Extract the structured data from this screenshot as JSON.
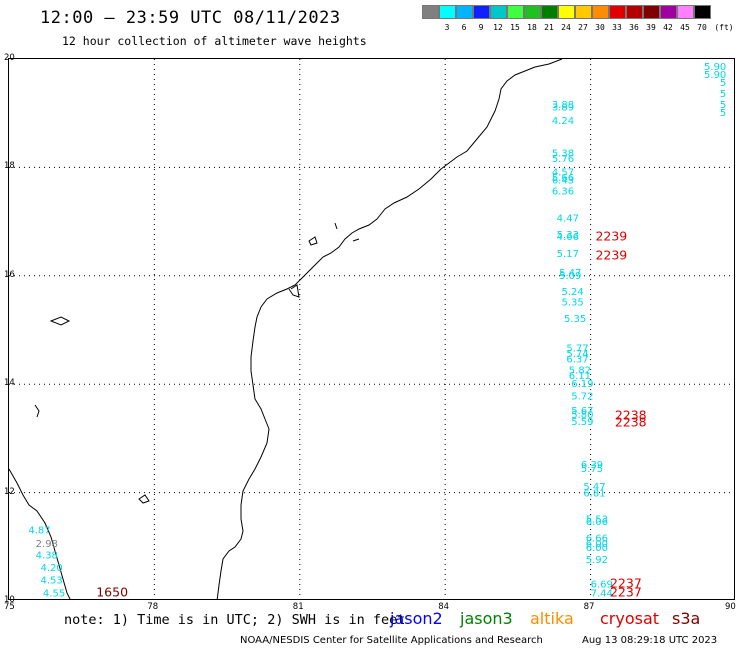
{
  "header": {
    "title": "12:00 – 23:59 UTC 08/11/2023",
    "subtitle": "12 hour collection of altimeter wave heights"
  },
  "colorbar": {
    "unit": "(ft)",
    "cells": [
      {
        "color": "#808080",
        "label": ""
      },
      {
        "color": "#00ffff",
        "label": "3"
      },
      {
        "color": "#00b4ff",
        "label": "6"
      },
      {
        "color": "#1020ff",
        "label": "9"
      },
      {
        "color": "#00c8c8",
        "label": "12"
      },
      {
        "color": "#40ff40",
        "label": "15"
      },
      {
        "color": "#20c020",
        "label": "18"
      },
      {
        "color": "#008000",
        "label": "21"
      },
      {
        "color": "#ffff00",
        "label": "24"
      },
      {
        "color": "#ffc800",
        "label": "27"
      },
      {
        "color": "#ff8c00",
        "label": "30"
      },
      {
        "color": "#e00000",
        "label": "33"
      },
      {
        "color": "#b40000",
        "label": "36"
      },
      {
        "color": "#800000",
        "label": "39"
      },
      {
        "color": "#a000a0",
        "label": "42"
      },
      {
        "color": "#ff80ff",
        "label": "45"
      },
      {
        "color": "#000000",
        "label": "70"
      }
    ]
  },
  "map": {
    "lon_range": [
      75,
      90
    ],
    "lat_range": [
      10,
      20
    ],
    "x_ticks": [
      "75",
      "78",
      "81",
      "84",
      "87",
      "90"
    ],
    "y_ticks": [
      "20",
      "18",
      "16",
      "14",
      "12",
      "10"
    ],
    "grid": "dotted"
  },
  "observations": [
    {
      "lon": 86.2,
      "lat": 19.1,
      "label": "3.88",
      "color": "#00d8e8"
    },
    {
      "lon": 86.2,
      "lat": 19.05,
      "label": "3.89",
      "color": "#00d8e8"
    },
    {
      "lon": 86.2,
      "lat": 18.8,
      "label": "4.24",
      "color": "#00d8e8"
    },
    {
      "lon": 86.2,
      "lat": 18.2,
      "label": "5.38",
      "color": "#00d8e8"
    },
    {
      "lon": 86.2,
      "lat": 18.1,
      "label": "5.76",
      "color": "#00d8e8"
    },
    {
      "lon": 86.2,
      "lat": 17.85,
      "label": "4.57",
      "color": "#00d8e8"
    },
    {
      "lon": 86.2,
      "lat": 17.75,
      "label": "5.66",
      "color": "#00d8e8"
    },
    {
      "lon": 86.2,
      "lat": 17.7,
      "label": "6.43",
      "color": "#00d8e8"
    },
    {
      "lon": 86.2,
      "lat": 17.5,
      "label": "6.36",
      "color": "#00d8e8"
    },
    {
      "lon": 86.3,
      "lat": 17.0,
      "label": "4.47",
      "color": "#00d8e8"
    },
    {
      "lon": 86.3,
      "lat": 16.7,
      "label": "5.33",
      "color": "#00d8e8"
    },
    {
      "lon": 86.3,
      "lat": 16.66,
      "label": "4.66",
      "color": "#00d8e8"
    },
    {
      "lon": 86.3,
      "lat": 16.35,
      "label": "5.17",
      "color": "#00d8e8"
    },
    {
      "lon": 86.35,
      "lat": 16.0,
      "label": "5.47",
      "color": "#00d8e8"
    },
    {
      "lon": 86.35,
      "lat": 15.94,
      "label": "5.09",
      "color": "#00d8e8"
    },
    {
      "lon": 86.4,
      "lat": 15.65,
      "label": "5.24",
      "color": "#00d8e8"
    },
    {
      "lon": 86.4,
      "lat": 15.45,
      "label": "5.35",
      "color": "#00d8e8"
    },
    {
      "lon": 86.45,
      "lat": 15.15,
      "label": "5.35",
      "color": "#00d8e8"
    },
    {
      "lon": 86.5,
      "lat": 14.6,
      "label": "5.77",
      "color": "#00d8e8"
    },
    {
      "lon": 86.5,
      "lat": 14.5,
      "label": "5.74",
      "color": "#00d8e8"
    },
    {
      "lon": 86.5,
      "lat": 14.4,
      "label": "6.37",
      "color": "#00d8e8"
    },
    {
      "lon": 86.55,
      "lat": 14.2,
      "label": "5.82",
      "color": "#00d8e8"
    },
    {
      "lon": 86.55,
      "lat": 14.1,
      "label": "6.11",
      "color": "#00d8e8"
    },
    {
      "lon": 86.6,
      "lat": 13.95,
      "label": "6.19",
      "color": "#00d8e8"
    },
    {
      "lon": 86.6,
      "lat": 13.72,
      "label": "5.72",
      "color": "#00d8e8"
    },
    {
      "lon": 86.6,
      "lat": 13.45,
      "label": "5.67",
      "color": "#00d8e8"
    },
    {
      "lon": 86.6,
      "lat": 13.38,
      "label": "5.80",
      "color": "#00d8e8"
    },
    {
      "lon": 86.6,
      "lat": 13.25,
      "label": "5.59",
      "color": "#00d8e8"
    },
    {
      "lon": 86.8,
      "lat": 12.45,
      "label": "6.39",
      "color": "#00d8e8"
    },
    {
      "lon": 86.8,
      "lat": 12.38,
      "label": "5.75",
      "color": "#00d8e8"
    },
    {
      "lon": 86.85,
      "lat": 12.05,
      "label": "5.47",
      "color": "#00d8e8"
    },
    {
      "lon": 86.85,
      "lat": 11.93,
      "label": "6.81",
      "color": "#00d8e8"
    },
    {
      "lon": 86.9,
      "lat": 11.45,
      "label": "5.53",
      "color": "#00d8e8"
    },
    {
      "lon": 86.9,
      "lat": 11.4,
      "label": "6.06",
      "color": "#00d8e8"
    },
    {
      "lon": 86.9,
      "lat": 11.1,
      "label": "6.66",
      "color": "#00d8e8"
    },
    {
      "lon": 86.9,
      "lat": 11.0,
      "label": "6.00",
      "color": "#00d8e8"
    },
    {
      "lon": 86.9,
      "lat": 10.92,
      "label": "6.00",
      "color": "#00d8e8"
    },
    {
      "lon": 86.9,
      "lat": 10.7,
      "label": "5.92",
      "color": "#00d8e8"
    },
    {
      "lon": 87.0,
      "lat": 10.25,
      "label": "6.69",
      "color": "#00d8e8"
    },
    {
      "lon": 87.0,
      "lat": 10.08,
      "label": "7.44",
      "color": "#00d8e8"
    },
    {
      "lon": 75.4,
      "lat": 11.25,
      "label": "4.87",
      "color": "#00d8e8"
    },
    {
      "lon": 75.55,
      "lat": 11.0,
      "label": "2.98",
      "color": "#808080"
    },
    {
      "lon": 75.55,
      "lat": 10.78,
      "label": "4.38",
      "color": "#00d8e8"
    },
    {
      "lon": 75.65,
      "lat": 10.55,
      "label": "4.20",
      "color": "#00d8e8"
    },
    {
      "lon": 75.65,
      "lat": 10.32,
      "label": "4.53",
      "color": "#00d8e8"
    },
    {
      "lon": 75.7,
      "lat": 10.08,
      "label": "4.55",
      "color": "#00d8e8"
    },
    {
      "lon": 89.8,
      "lat": 19.8,
      "label": "5.90",
      "color": "#00d8e8"
    },
    {
      "lon": 89.8,
      "lat": 19.65,
      "label": "5.90",
      "color": "#00d8e8"
    },
    {
      "lon": 89.8,
      "lat": 19.5,
      "label": "5",
      "color": "#00d8e8"
    },
    {
      "lon": 89.8,
      "lat": 19.3,
      "label": "5",
      "color": "#00d8e8"
    },
    {
      "lon": 89.8,
      "lat": 19.1,
      "label": "5",
      "color": "#00d8e8"
    },
    {
      "lon": 89.8,
      "lat": 18.95,
      "label": "5",
      "color": "#00d8e8"
    }
  ],
  "passes": [
    {
      "lon": 87.1,
      "lat": 16.65,
      "label": "2239",
      "color": "#e00000"
    },
    {
      "lon": 87.1,
      "lat": 16.3,
      "label": "2239",
      "color": "#e00000"
    },
    {
      "lon": 87.5,
      "lat": 13.35,
      "label": "2238",
      "color": "#e00000"
    },
    {
      "lon": 87.5,
      "lat": 13.22,
      "label": "2238",
      "color": "#e00000"
    },
    {
      "lon": 87.4,
      "lat": 10.25,
      "label": "2237",
      "color": "#e00000"
    },
    {
      "lon": 87.4,
      "lat": 10.08,
      "label": "2237",
      "color": "#e00000"
    },
    {
      "lon": 76.8,
      "lat": 10.08,
      "label": "1650",
      "color": "#800000"
    }
  ],
  "footer": {
    "note": "note: 1) Time is in UTC; 2) SWH is in feet",
    "legend": [
      {
        "label": "jason2",
        "color": "#0000ff"
      },
      {
        "label": "jason3",
        "color": "#008000"
      },
      {
        "label": "altika",
        "color": "#ff8c00"
      },
      {
        "label": "cryosat",
        "color": "#e00000"
      },
      {
        "label": "s3a",
        "color": "#800000"
      }
    ],
    "credit": "NOAA/NESDIS Center for Satellite Applications and Research",
    "stamp": "Aug 13 08:29:18 UTC 2023"
  }
}
